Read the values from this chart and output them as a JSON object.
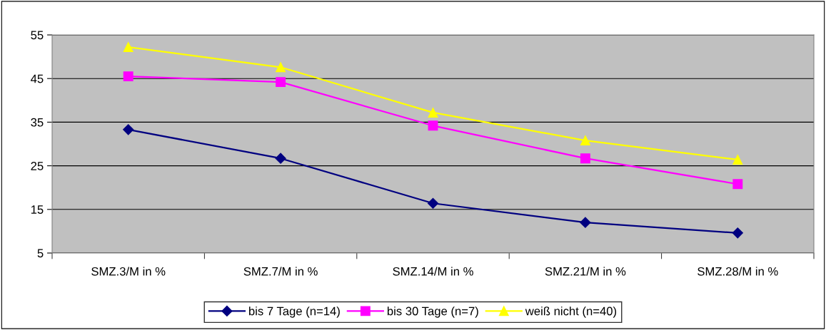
{
  "chart_data": {
    "type": "line",
    "categories": [
      "SMZ.3/M in %",
      "SMZ.7/M in %",
      "SMZ.14/M in %",
      "SMZ.21/M in %",
      "SMZ.28/M in %"
    ],
    "series": [
      {
        "name": "bis 7 Tage (n=14)",
        "color": "#000080",
        "marker": "diamond",
        "values": [
          33.3,
          26.7,
          16.4,
          12.0,
          9.6
        ]
      },
      {
        "name": "bis 30 Tage (n=7)",
        "color": "#ff00ff",
        "marker": "square",
        "values": [
          45.5,
          44.2,
          34.2,
          26.7,
          20.8
        ]
      },
      {
        "name": "weiß nicht (n=40)",
        "color": "#ffff00",
        "marker": "triangle",
        "values": [
          52.2,
          47.6,
          37.2,
          30.8,
          26.4
        ]
      }
    ],
    "ylim": [
      5,
      55
    ],
    "yticks": [
      5,
      15,
      25,
      35,
      45,
      55
    ],
    "grid": "y",
    "legend": "bottom"
  }
}
